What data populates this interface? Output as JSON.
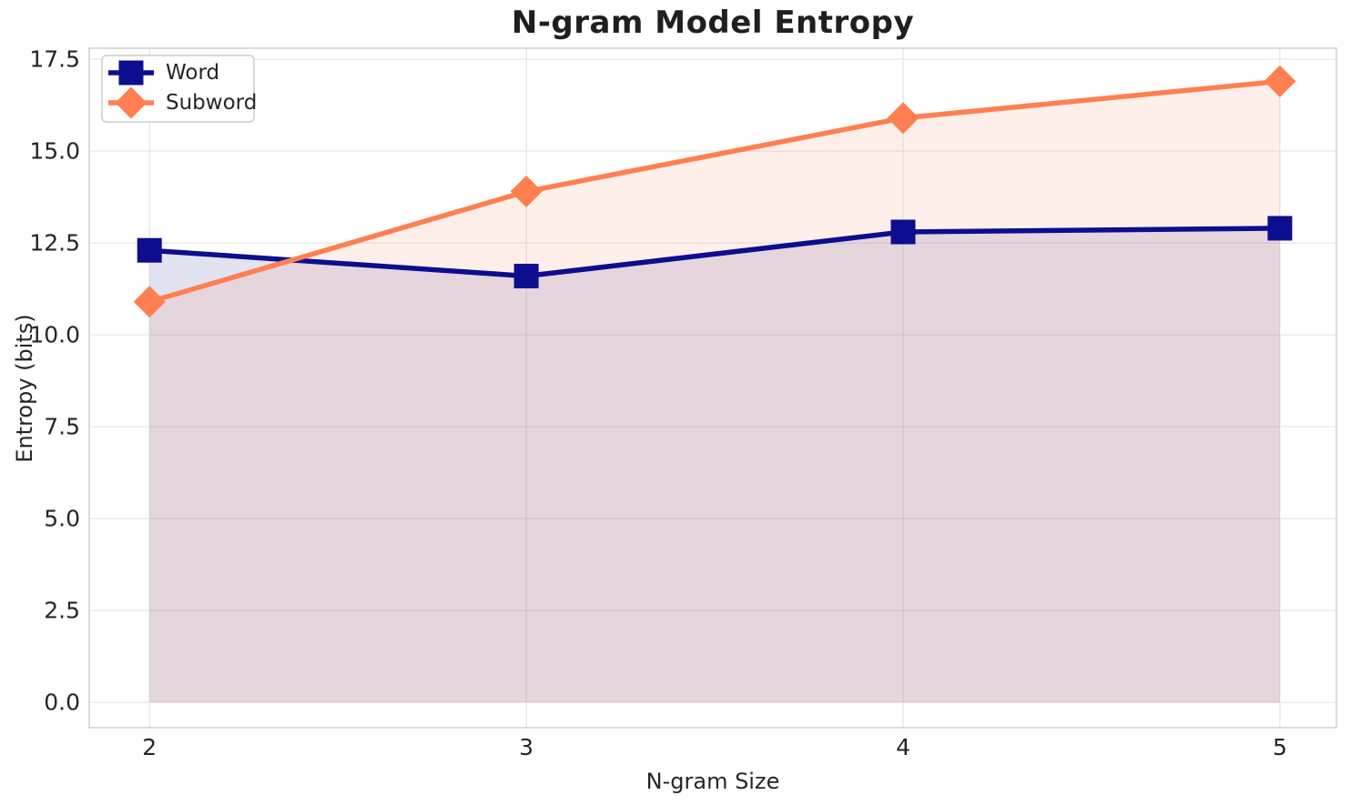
{
  "chart_data": {
    "type": "line",
    "title": "N-gram Model Entropy",
    "xlabel": "N-gram Size",
    "ylabel": "Entropy (bits)",
    "x": [
      2,
      3,
      4,
      5
    ],
    "series": [
      {
        "name": "Word",
        "values": [
          12.3,
          11.6,
          12.8,
          12.9
        ],
        "color": "#0d0d8f",
        "marker": "square",
        "fill_to_zero": true
      },
      {
        "name": "Subword",
        "values": [
          10.9,
          13.9,
          15.9,
          16.9
        ],
        "color": "#ff7f50",
        "marker": "diamond",
        "fill_to_zero": true
      }
    ],
    "xticks": {
      "values": [
        2,
        3,
        4,
        5
      ],
      "labels": [
        "2",
        "3",
        "4",
        "5"
      ]
    },
    "yticks": {
      "values": [
        0,
        2.5,
        5,
        7.5,
        10,
        12.5,
        15,
        17.5
      ],
      "labels": [
        "0.0",
        "2.5",
        "5.0",
        "7.5",
        "10.0",
        "12.5",
        "15.0",
        "17.5"
      ]
    },
    "xlim": [
      1.84,
      5.15
    ],
    "ylim": [
      -0.69,
      17.8
    ],
    "grid": true,
    "legend_position": "upper left",
    "fill_alpha": 0.12,
    "line_width": 5.5,
    "colors": {
      "grid": "#e7e7e7",
      "plot_border": "#cccccc",
      "text": "#262626",
      "legend_border": "#cccccc",
      "legend_background": "#ffffff"
    }
  }
}
